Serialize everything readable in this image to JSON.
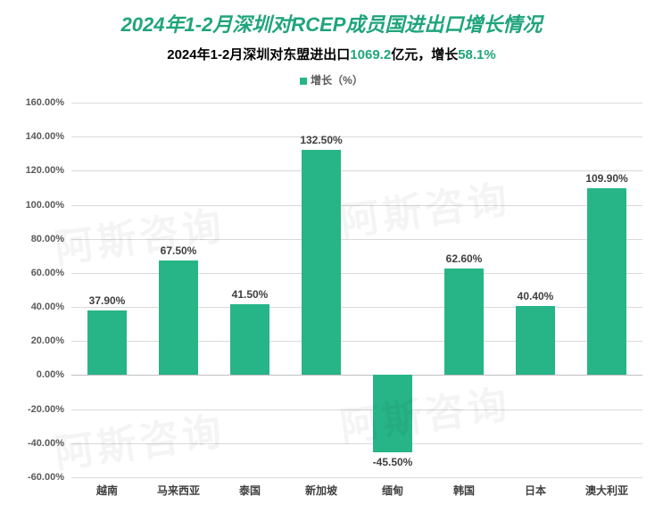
{
  "title": {
    "text": "2024年1-2月深圳对RCEP成员国进出口增长情况",
    "color": "#1fa57a",
    "fontsize": 22
  },
  "subtitle": {
    "prefix": "2024年1-2月深圳对东盟进出口",
    "value": "1069.2",
    "mid": "亿元，增长",
    "growth": "58.1%",
    "text_color": "#000000",
    "highlight_color": "#1fa57a",
    "fontsize": 15
  },
  "legend": {
    "label": "增长（%）",
    "swatch_color": "#27b587",
    "fontsize": 12,
    "text_color": "#5a5a5a"
  },
  "chart": {
    "type": "bar",
    "categories": [
      "越南",
      "马来西亚",
      "泰国",
      "新加坡",
      "缅甸",
      "韩国",
      "日本",
      "澳大利亚"
    ],
    "values": [
      37.9,
      67.5,
      41.5,
      132.5,
      -45.5,
      62.6,
      40.4,
      109.9
    ],
    "value_labels": [
      "37.90%",
      "67.50%",
      "41.50%",
      "132.50%",
      "-45.50%",
      "62.60%",
      "40.40%",
      "109.90%"
    ],
    "bar_color": "#27b587",
    "ylim": [
      -60,
      160
    ],
    "ytick_step": 20,
    "ytick_labels": [
      "-60.00%",
      "-40.00%",
      "-20.00%",
      "0.00%",
      "20.00%",
      "40.00%",
      "60.00%",
      "80.00%",
      "100.00%",
      "120.00%",
      "140.00%",
      "160.00%"
    ],
    "grid_color": "#d9d9d9",
    "zero_line_color": "#bfbfbf",
    "tick_fontsize": 11,
    "tick_color": "#5a5a5a",
    "label_fontsize": 12,
    "label_color": "#404040",
    "xtick_fontsize": 12,
    "xtick_color": "#404040",
    "bar_width_ratio": 0.55,
    "background_color": "#ffffff"
  }
}
